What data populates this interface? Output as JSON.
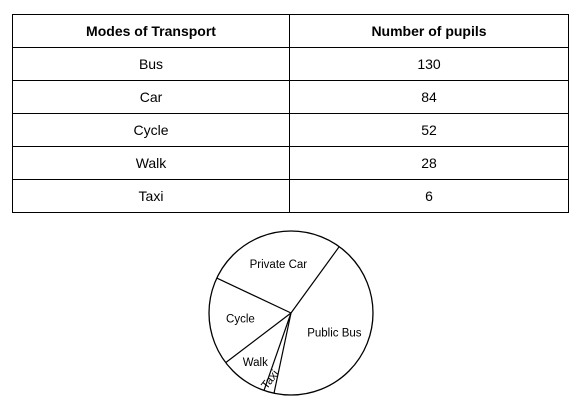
{
  "table": {
    "headers": [
      "Modes of Transport",
      "Number of pupils"
    ],
    "rows": [
      {
        "mode": "Bus",
        "pupils": "130"
      },
      {
        "mode": "Car",
        "pupils": "84"
      },
      {
        "mode": "Cycle",
        "pupils": "52"
      },
      {
        "mode": "Walk",
        "pupils": "28"
      },
      {
        "mode": "Taxi",
        "pupils": "6"
      }
    ]
  },
  "chart_data": {
    "type": "pie",
    "slices": [
      {
        "label": "Public Bus",
        "value": 130
      },
      {
        "label": "Private Car",
        "value": 84
      },
      {
        "label": "Cycle",
        "value": 52
      },
      {
        "label": "Walk",
        "value": 28
      },
      {
        "label": "Taxi",
        "value": 6
      }
    ]
  }
}
